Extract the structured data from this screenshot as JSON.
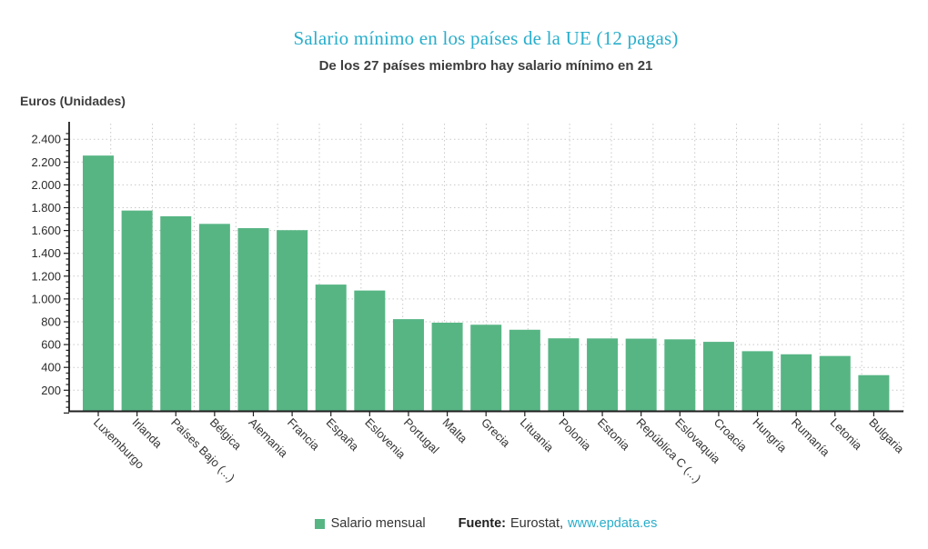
{
  "chart_data": {
    "type": "bar",
    "title": "Salario mínimo en los países de la UE (12 pagas)",
    "subtitle": "De los 27 países miembro hay salario mínimo en 21",
    "ylabel": "Euros (Unidades)",
    "series_name": "Salario mensual",
    "categories": [
      "Luxemburgo",
      "Irlanda",
      "Países Bajo (...)",
      "Bélgica",
      "Alemania",
      "Francia",
      "España",
      "Eslovenia",
      "Portugal",
      "Malta",
      "Grecia",
      "Lituania",
      "Polonia",
      "Estonia",
      "República C (...)",
      "Eslovaquia",
      "Croacia",
      "Hungría",
      "Rumanía",
      "Letonia",
      "Bulgaria"
    ],
    "values": [
      2257,
      1775,
      1725,
      1658,
      1621,
      1603,
      1126,
      1074,
      823,
      792,
      774,
      730,
      655,
      654,
      652,
      646,
      624,
      542,
      515,
      500,
      332
    ],
    "ylim": [
      0,
      2500
    ],
    "ytick_interval": 200,
    "ytick_labels": [
      "200",
      "400",
      "600",
      "800",
      "1.000",
      "1.200",
      "1.400",
      "1.600",
      "1.800",
      "2.000",
      "2.200",
      "2.400"
    ],
    "grid": "dotted horizontal and vertical",
    "legend_position": "bottom-center",
    "xlabel": ""
  },
  "footer": {
    "legend_label": "Salario mensual",
    "source_label": "Fuente:",
    "source_name": "Eurostat,",
    "source_link": "www.epdata.es"
  },
  "colors": {
    "title": "#29AECB",
    "subtitle": "#3d3d3d",
    "bar": "#57B584",
    "link": "#29AECB",
    "grid": "#c9c9c9",
    "axis": "#1f1f1f",
    "tick_text": "#2b2b2b"
  }
}
